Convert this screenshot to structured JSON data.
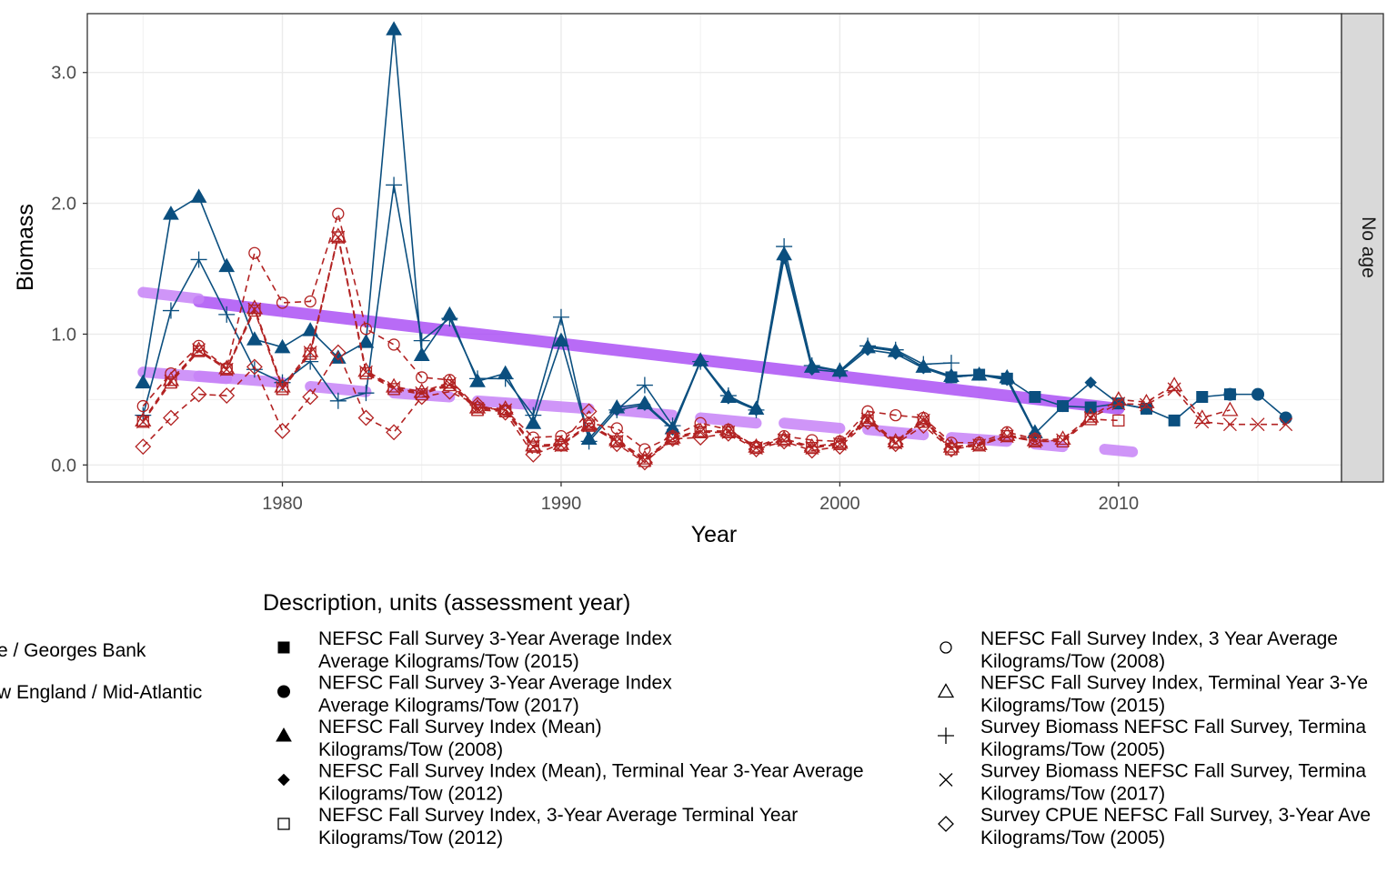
{
  "chart_data": {
    "type": "line",
    "title": "",
    "xlabel": "Year",
    "ylabel": "Biomass",
    "facet_label": "No age",
    "xlim": [
      1973,
      2018
    ],
    "ylim": [
      -0.13,
      3.45
    ],
    "x_ticks": [
      1980,
      1990,
      2000,
      2010
    ],
    "y_ticks": [
      0.0,
      1.0,
      2.0,
      3.0
    ],
    "y_tick_labels": [
      "0.0",
      "1.0",
      "2.0",
      "3.0"
    ],
    "grid": true,
    "colors": {
      "georges_bank": "#0b4f7f",
      "mid_atlantic": "#b22222",
      "trend": "#a94bf5",
      "trend_light": "#c783f7",
      "strip": "#d9d9d9"
    },
    "region_legend": {
      "items": [
        "e / Georges Bank",
        "w England / Mid-Atlantic"
      ]
    },
    "description_legend": {
      "title": "Description, units (assessment year)",
      "items": [
        {
          "shape": "square",
          "line1": "NEFSC Fall Survey 3-Year Average Index",
          "line2": "Average Kilograms/Tow (2015)"
        },
        {
          "shape": "circle",
          "line1": "NEFSC Fall Survey 3-Year Average Index",
          "line2": "Average Kilograms/Tow (2017)"
        },
        {
          "shape": "triangle",
          "line1": "NEFSC Fall Survey Index (Mean)",
          "line2": "Kilograms/Tow (2008)"
        },
        {
          "shape": "diamond",
          "line1": "NEFSC Fall Survey Index (Mean), Terminal Year 3-Year Average",
          "line2": "Kilograms/Tow (2012)"
        },
        {
          "shape": "open-square",
          "line1": "NEFSC Fall Survey Index, 3-Year Average Terminal Year",
          "line2": "Kilograms/Tow (2012)"
        },
        {
          "shape": "open-circle",
          "line1": "NEFSC Fall Survey Index, 3 Year Average",
          "line2": "Kilograms/Tow (2008)"
        },
        {
          "shape": "open-triangle",
          "line1": "NEFSC Fall Survey Index, Terminal Year 3-Ye",
          "line2": "Kilograms/Tow (2015)"
        },
        {
          "shape": "plus",
          "line1": "Survey Biomass NEFSC Fall Survey, Termina",
          "line2": "Kilograms/Tow (2005)"
        },
        {
          "shape": "cross",
          "line1": "Survey Biomass NEFSC Fall Survey, Termina",
          "line2": "Kilograms/Tow (2017)"
        },
        {
          "shape": "open-diamond",
          "line1": "Survey CPUE NEFSC Fall Survey, 3-Year Ave",
          "line2": "Kilograms/Tow (2005)"
        }
      ]
    },
    "series": [
      {
        "name": "NEFSC Fall Survey Index (Mean) Kilograms/Tow (2008)",
        "region": "georges_bank",
        "shape": "triangle",
        "x": [
          1975,
          1976,
          1977,
          1978,
          1979,
          1980,
          1981,
          1982,
          1983,
          1984,
          1985,
          1986,
          1987,
          1988,
          1989,
          1990,
          1991,
          1992,
          1993,
          1994,
          1995,
          1996,
          1997,
          1998,
          1999,
          2000,
          2001,
          2002,
          2003,
          2004,
          2005,
          2006,
          2007
        ],
        "y": [
          0.63,
          1.92,
          2.05,
          1.52,
          0.96,
          0.9,
          1.03,
          0.82,
          0.94,
          3.33,
          0.84,
          1.15,
          0.64,
          0.7,
          0.32,
          0.95,
          0.2,
          0.44,
          0.47,
          0.28,
          0.8,
          0.52,
          0.43,
          1.61,
          0.75,
          0.72,
          0.9,
          0.87,
          0.75,
          0.68,
          0.69,
          0.67,
          0.25
        ]
      },
      {
        "name": "Survey Biomass NEFSC Fall Survey, Termina Kilograms/Tow (2005)",
        "region": "georges_bank",
        "shape": "plus",
        "x": [
          1975,
          1976,
          1977,
          1978,
          1979,
          1980,
          1981,
          1982,
          1983,
          1984,
          1985,
          1986,
          1987,
          1988,
          1989,
          1990,
          1991,
          1992,
          1993,
          1994,
          1995,
          1996,
          1997,
          1998,
          1999,
          2000,
          2001,
          2002,
          2003,
          2004
        ],
        "y": [
          0.38,
          1.18,
          1.57,
          1.15,
          0.73,
          0.63,
          0.79,
          0.49,
          0.55,
          2.14,
          0.95,
          1.12,
          0.66,
          0.66,
          0.38,
          1.13,
          0.18,
          0.42,
          0.61,
          0.3,
          0.79,
          0.53,
          0.42,
          1.67,
          0.76,
          0.72,
          0.91,
          0.88,
          0.77,
          0.78
        ]
      },
      {
        "name": "NEFSC Fall Survey Index (Mean), Terminal Year 3-Year Average Kilograms/Tow (2012)",
        "region": "georges_bank",
        "shape": "diamond",
        "x": [
          1992,
          1993,
          1994,
          1995,
          1996,
          1997,
          1998,
          1999,
          2000,
          2001,
          2002,
          2003,
          2004,
          2005,
          2006,
          2007,
          2008,
          2009,
          2010,
          2011
        ],
        "y": [
          0.42,
          0.46,
          0.27,
          0.79,
          0.51,
          0.42,
          1.58,
          0.73,
          0.71,
          0.88,
          0.85,
          0.74,
          0.67,
          0.69,
          0.65,
          0.24,
          0.45,
          0.63,
          0.47,
          0.43
        ]
      },
      {
        "name": "NEFSC Fall Survey 3-Year Average Index Average Kilograms/Tow (2015)",
        "region": "georges_bank",
        "shape": "square",
        "x": [
          2004,
          2005,
          2006,
          2007,
          2008,
          2009,
          2010,
          2011,
          2012,
          2013,
          2014
        ],
        "y": [
          0.67,
          0.69,
          0.66,
          0.52,
          0.45,
          0.44,
          0.47,
          0.43,
          0.34,
          0.52,
          0.54
        ]
      },
      {
        "name": "NEFSC Fall Survey 3-Year Average Index Average Kilograms/Tow (2017)",
        "region": "georges_bank",
        "shape": "circle",
        "x": [
          2014,
          2015,
          2016
        ],
        "y": [
          0.54,
          0.54,
          0.36
        ]
      },
      {
        "name": "NEFSC Fall Survey Index, 3 Year Average Kilograms/Tow (2008)",
        "region": "mid_atlantic",
        "shape": "open-circle",
        "x": [
          1975,
          1976,
          1977,
          1978,
          1979,
          1980,
          1981,
          1982,
          1983,
          1984,
          1985,
          1986,
          1987,
          1988,
          1989,
          1990,
          1991,
          1992,
          1993,
          1994,
          1995,
          1996,
          1997,
          1998,
          1999,
          2000,
          2001,
          2002,
          2003,
          2004,
          2005,
          2006,
          2007
        ],
        "y": [
          0.45,
          0.7,
          0.91,
          0.74,
          1.62,
          1.24,
          1.25,
          1.92,
          1.04,
          0.92,
          0.67,
          0.65,
          0.44,
          0.42,
          0.21,
          0.22,
          0.32,
          0.28,
          0.12,
          0.22,
          0.32,
          0.27,
          0.14,
          0.22,
          0.19,
          0.18,
          0.41,
          0.38,
          0.36,
          0.17,
          0.17,
          0.25,
          0.2
        ]
      },
      {
        "name": "Survey Biomass NEFSC Fall Survey, Termina Kilograms/Tow (2005)",
        "region": "mid_atlantic",
        "shape": "open-square",
        "x": [
          1975,
          1976,
          1977,
          1978,
          1979,
          1980,
          1981,
          1982,
          1983,
          1984,
          1985,
          1986,
          1987,
          1988,
          1989,
          1990,
          1991,
          1992,
          1993,
          1994,
          1995,
          1996,
          1997,
          1998,
          1999,
          2000,
          2001,
          2002,
          2003,
          2004,
          2005,
          2006,
          2007,
          2008,
          2009,
          2010
        ],
        "y": [
          0.33,
          0.63,
          0.87,
          0.73,
          1.18,
          0.58,
          0.85,
          1.74,
          0.7,
          0.58,
          0.54,
          0.61,
          0.42,
          0.41,
          0.14,
          0.15,
          0.3,
          0.18,
          0.03,
          0.2,
          0.25,
          0.25,
          0.13,
          0.19,
          0.13,
          0.16,
          0.34,
          0.17,
          0.33,
          0.12,
          0.15,
          0.22,
          0.18,
          0.18,
          0.35,
          0.34
        ]
      },
      {
        "name": "NEFSC Fall Survey Index, Terminal Year 3-Ye Kilograms/Tow (2015)",
        "region": "mid_atlantic",
        "shape": "open-triangle",
        "x": [
          1975,
          1976,
          1977,
          1978,
          1979,
          1980,
          1981,
          1982,
          1983,
          1984,
          1985,
          1986,
          1987,
          1988,
          1989,
          1990,
          1991,
          1992,
          1993,
          1994,
          1995,
          1996,
          1997,
          1998,
          1999,
          2000,
          2001,
          2002,
          2003,
          2004,
          2005,
          2006,
          2007,
          2008,
          2009,
          2010,
          2011,
          2012,
          2013,
          2014
        ],
        "y": [
          0.34,
          0.65,
          0.88,
          0.74,
          1.2,
          0.6,
          0.87,
          1.75,
          0.72,
          0.6,
          0.56,
          0.63,
          0.44,
          0.43,
          0.15,
          0.16,
          0.31,
          0.19,
          0.05,
          0.21,
          0.26,
          0.26,
          0.14,
          0.2,
          0.14,
          0.17,
          0.36,
          0.18,
          0.35,
          0.14,
          0.16,
          0.23,
          0.19,
          0.2,
          0.37,
          0.5,
          0.48,
          0.61,
          0.36,
          0.42
        ]
      },
      {
        "name": "Survey Biomass NEFSC Fall Survey, Termina Kilograms/Tow (2017)",
        "region": "mid_atlantic",
        "shape": "cross",
        "x": [
          1975,
          1976,
          1977,
          1978,
          1979,
          1980,
          1981,
          1982,
          1983,
          1984,
          1985,
          1986,
          1987,
          1988,
          1989,
          1990,
          1991,
          1992,
          1993,
          1994,
          1995,
          1996,
          1997,
          1998,
          1999,
          2000,
          2001,
          2002,
          2003,
          2004,
          2005,
          2006,
          2007,
          2008,
          2009,
          2010,
          2011,
          2012,
          2013,
          2014,
          2015,
          2016
        ],
        "y": [
          0.33,
          0.64,
          0.88,
          0.73,
          1.19,
          0.59,
          0.86,
          1.74,
          0.71,
          0.59,
          0.55,
          0.62,
          0.43,
          0.42,
          0.14,
          0.15,
          0.3,
          0.18,
          0.04,
          0.2,
          0.25,
          0.25,
          0.13,
          0.19,
          0.13,
          0.16,
          0.35,
          0.17,
          0.34,
          0.13,
          0.15,
          0.22,
          0.18,
          0.19,
          0.36,
          0.47,
          0.46,
          0.58,
          0.33,
          0.31,
          0.31,
          0.31
        ]
      },
      {
        "name": "Survey CPUE NEFSC Fall Survey, 3-Year Ave Kilograms/Tow (2005)",
        "region": "mid_atlantic",
        "shape": "open-diamond",
        "x": [
          1975,
          1976,
          1977,
          1978,
          1979,
          1980,
          1981,
          1982,
          1983,
          1984,
          1985,
          1986,
          1987,
          1988,
          1989,
          1990,
          1991,
          1992,
          1993,
          1994,
          1995,
          1996,
          1997,
          1998,
          1999,
          2000,
          2001,
          2002,
          2003,
          2004
        ],
        "y": [
          0.14,
          0.36,
          0.54,
          0.53,
          0.75,
          0.26,
          0.52,
          0.86,
          0.36,
          0.25,
          0.52,
          0.56,
          0.46,
          0.4,
          0.08,
          0.16,
          0.41,
          0.16,
          0.02,
          0.2,
          0.21,
          0.24,
          0.12,
          0.18,
          0.11,
          0.14,
          0.33,
          0.16,
          0.3,
          0.12
        ]
      }
    ],
    "trend_lines": [
      {
        "style": "dark",
        "x": [
          1977,
          2010
        ],
        "y": [
          1.25,
          0.43
        ]
      },
      {
        "style": "light",
        "x": [
          1975,
          1977
        ],
        "y": [
          1.32,
          1.27
        ]
      },
      {
        "style": "light",
        "x": [
          1975,
          1978
        ],
        "y": [
          0.71,
          0.66
        ]
      },
      {
        "style": "light",
        "x": [
          1977,
          1980
        ],
        "y": [
          0.68,
          0.63
        ]
      },
      {
        "style": "light",
        "x": [
          1981,
          1983
        ],
        "y": [
          0.6,
          0.56
        ]
      },
      {
        "style": "light",
        "x": [
          1984,
          1986
        ],
        "y": [
          0.55,
          0.52
        ]
      },
      {
        "style": "light",
        "x": [
          1987,
          1989
        ],
        "y": [
          0.49,
          0.46
        ]
      },
      {
        "style": "light",
        "x": [
          1989,
          1991
        ],
        "y": [
          0.46,
          0.43
        ]
      },
      {
        "style": "light",
        "x": [
          1992,
          1994
        ],
        "y": [
          0.42,
          0.38
        ]
      },
      {
        "style": "light",
        "x": [
          1995,
          1997
        ],
        "y": [
          0.36,
          0.32
        ]
      },
      {
        "style": "light",
        "x": [
          1998,
          2000
        ],
        "y": [
          0.32,
          0.28
        ]
      },
      {
        "style": "light",
        "x": [
          2001,
          2003
        ],
        "y": [
          0.27,
          0.23
        ]
      },
      {
        "style": "light",
        "x": [
          2004,
          2006
        ],
        "y": [
          0.21,
          0.18
        ]
      },
      {
        "style": "light",
        "x": [
          2007,
          2008
        ],
        "y": [
          0.16,
          0.14
        ]
      },
      {
        "style": "light",
        "x": [
          2009.5,
          2010.5
        ],
        "y": [
          0.12,
          0.1
        ]
      }
    ]
  }
}
